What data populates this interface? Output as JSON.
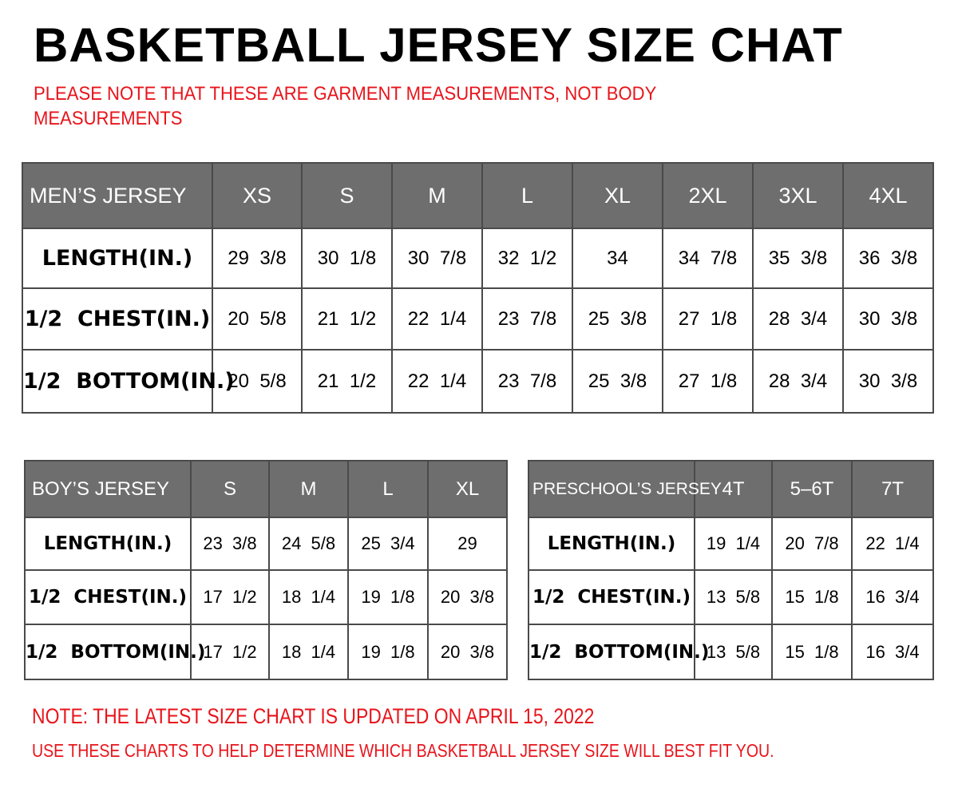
{
  "title": "BASKETBALL JERSEY SIZE CHAT",
  "note_lines": [
    "PLEASE NOTE THAT THESE ARE GARMENT MEASUREMENTS, NOT BODY",
    "MEASUREMENTS"
  ],
  "colors": {
    "header_bg": "#6e6e6e",
    "note_red": "#e8141b"
  },
  "tables": {
    "mens": {
      "label": "MEN’S JERSEY",
      "sizes": [
        "XS",
        "S",
        "M",
        "L",
        "XL",
        "2XL",
        "3XL",
        "4XL"
      ],
      "rows": [
        {
          "label": "LENGTH(IN.)",
          "values": [
            "29  3/8",
            "30  1/8",
            "30  7/8",
            "32  1/2",
            "34",
            "34  7/8",
            "35  3/8",
            "36  3/8"
          ]
        },
        {
          "label": "1/2  CHEST(IN.)",
          "values": [
            "20  5/8",
            "21  1/2",
            "22  1/4",
            "23  7/8",
            "25  3/8",
            "27  1/8",
            "28  3/4",
            "30  3/8"
          ]
        },
        {
          "label": "1/2  BOTTOM(IN.)",
          "values": [
            "20  5/8",
            "21  1/2",
            "22  1/4",
            "23  7/8",
            "25  3/8",
            "27  1/8",
            "28  3/4",
            "30  3/8"
          ]
        }
      ]
    },
    "boys": {
      "label": "BOY’S JERSEY",
      "sizes": [
        "S",
        "M",
        "L",
        "XL"
      ],
      "rows": [
        {
          "label": "LENGTH(IN.)",
          "values": [
            "23  3/8",
            "24  5/8",
            "25  3/4",
            "29"
          ]
        },
        {
          "label": "1/2  CHEST(IN.)",
          "values": [
            "17  1/2",
            "18  1/4",
            "19  1/8",
            "20  3/8"
          ]
        },
        {
          "label": "1/2  BOTTOM(IN.)",
          "values": [
            "17  1/2",
            "18  1/4",
            "19  1/8",
            "20  3/8"
          ]
        }
      ]
    },
    "preschool": {
      "label": "PRESCHOOL’S JERSEY",
      "sizes": [
        "4T",
        "5–6T",
        "7T"
      ],
      "rows": [
        {
          "label": "LENGTH(IN.)",
          "values": [
            "19  1/4",
            "20  7/8",
            "22  1/4"
          ]
        },
        {
          "label": "1/2  CHEST(IN.)",
          "values": [
            "13  5/8",
            "15  1/8",
            "16  3/4"
          ]
        },
        {
          "label": "1/2  BOTTOM(IN.)",
          "values": [
            "13  5/8",
            "15  1/8",
            "16  3/4"
          ]
        }
      ]
    }
  },
  "footer": {
    "update_note": "NOTE: THE LATEST SIZE CHART IS UPDATED ON APRIL 15, 2022",
    "usage_note": "USE THESE CHARTS TO HELP DETERMINE WHICH  BASKETBALL JERSEY  SIZE WILL BEST FIT YOU."
  }
}
